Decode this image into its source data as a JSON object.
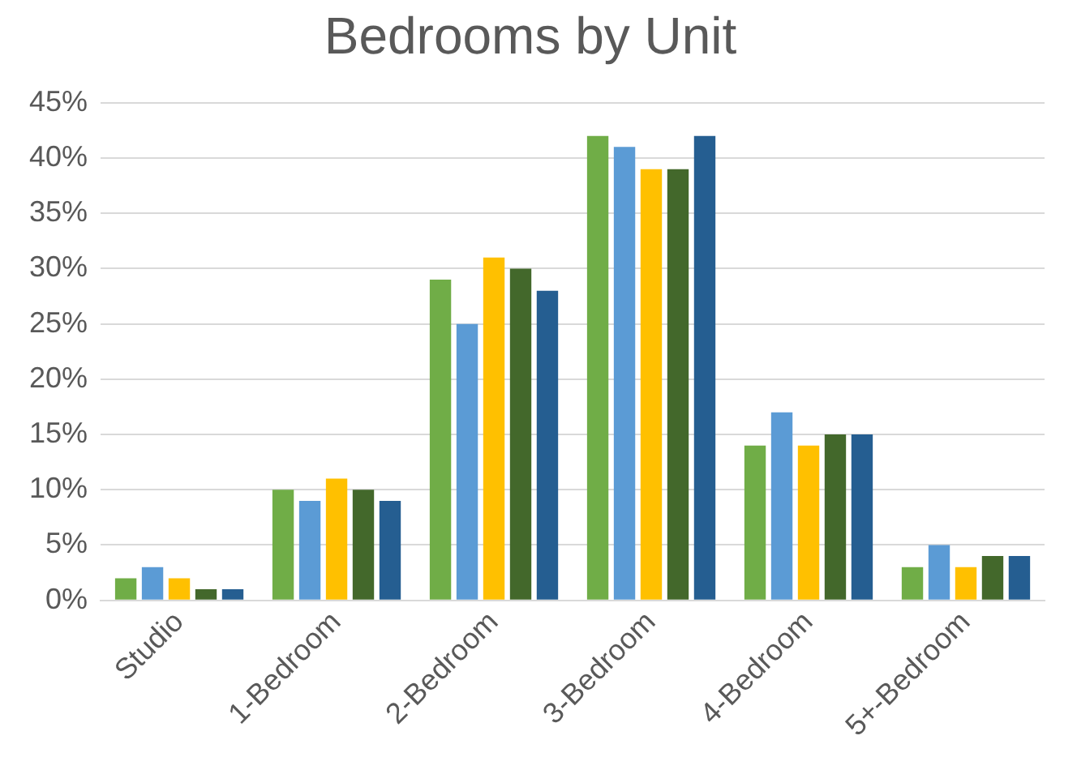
{
  "chart_data": {
    "type": "bar",
    "title": "Bedrooms by Unit",
    "categories": [
      "Studio",
      "1-Bedroom",
      "2-Bedroom",
      "3-Bedroom",
      "4-Bedroom",
      "5+-Bedroom"
    ],
    "series": [
      {
        "color": "#70ad47",
        "values": [
          2,
          10,
          29,
          42,
          14,
          3
        ]
      },
      {
        "color": "#5b9bd5",
        "values": [
          3,
          9,
          25,
          41,
          17,
          5
        ]
      },
      {
        "color": "#ffc000",
        "values": [
          2,
          11,
          31,
          39,
          14,
          3
        ]
      },
      {
        "color": "#43682b",
        "values": [
          1,
          10,
          30,
          39,
          15,
          4
        ]
      },
      {
        "color": "#255e91",
        "values": [
          1,
          9,
          28,
          42,
          15,
          4
        ]
      }
    ],
    "ylim": [
      0,
      45
    ],
    "yticks": [
      {
        "value": 0,
        "label": "0%"
      },
      {
        "value": 5,
        "label": "5%"
      },
      {
        "value": 10,
        "label": "10%"
      },
      {
        "value": 15,
        "label": "15%"
      },
      {
        "value": 20,
        "label": "20%"
      },
      {
        "value": 25,
        "label": "25%"
      },
      {
        "value": 30,
        "label": "30%"
      },
      {
        "value": 35,
        "label": "35%"
      },
      {
        "value": 40,
        "label": "40%"
      },
      {
        "value": 45,
        "label": "45%"
      }
    ],
    "grid": "y",
    "legend": false
  }
}
